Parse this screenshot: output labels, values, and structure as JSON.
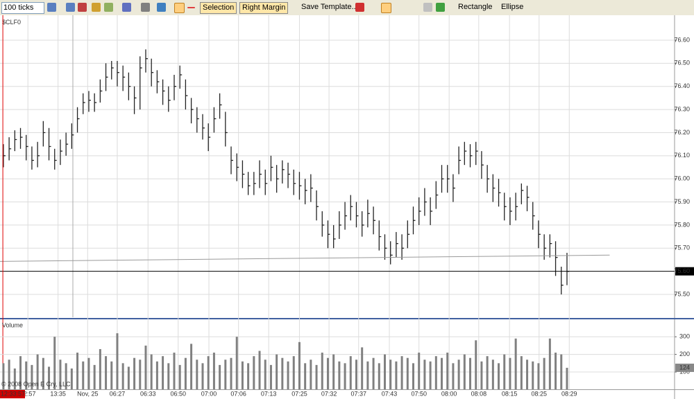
{
  "toolbar": {
    "interval": "100 ticks",
    "buttons": [
      "Selection",
      "Right Margin",
      "Save Template...",
      "Rectangle",
      "Ellipse"
    ]
  },
  "chart_data": [
    {
      "type": "ohlc",
      "title": "$CLF0",
      "color": "#222222",
      "close": [
        76.1,
        76.13,
        76.17,
        76.18,
        76.14,
        76.08,
        76.1,
        76.2,
        76.14,
        76.08,
        76.12,
        76.15,
        76.19,
        76.26,
        76.33,
        76.34,
        76.33,
        76.38,
        76.44,
        76.48,
        76.46,
        76.44,
        76.4,
        76.35,
        76.48,
        76.52,
        76.46,
        76.42,
        76.38,
        76.34,
        76.4,
        76.45,
        76.36,
        76.3,
        76.26,
        76.22,
        76.18,
        76.26,
        76.32,
        76.2,
        76.08,
        76.05,
        76.02,
        75.97,
        75.98,
        76.02,
        75.98,
        76.05,
        76.0,
        76.04,
        76.02,
        75.98,
        75.97,
        75.95,
        75.96,
        75.88,
        75.8,
        75.76,
        75.74,
        75.8,
        75.84,
        75.88,
        75.84,
        75.8,
        75.85,
        75.82,
        75.75,
        75.7,
        75.67,
        75.72,
        75.7,
        75.76,
        75.82,
        75.86,
        75.9,
        75.86,
        75.93,
        76.0,
        76.0,
        75.96,
        76.08,
        76.12,
        76.1,
        76.12,
        76.06,
        76.0,
        75.96,
        75.94,
        75.88,
        75.86,
        75.88,
        75.95,
        75.92,
        75.84,
        75.76,
        75.7,
        75.72,
        75.66,
        75.54,
        75.6
      ],
      "high": [
        76.15,
        76.18,
        76.21,
        76.22,
        76.19,
        76.14,
        76.16,
        76.25,
        76.22,
        76.13,
        76.17,
        76.2,
        76.24,
        76.31,
        76.37,
        76.38,
        76.37,
        76.43,
        76.5,
        76.51,
        76.51,
        76.49,
        76.46,
        76.4,
        76.53,
        76.56,
        76.52,
        76.47,
        76.43,
        76.4,
        76.45,
        76.49,
        76.43,
        76.35,
        76.31,
        76.28,
        76.24,
        76.31,
        76.37,
        76.29,
        76.14,
        76.11,
        76.08,
        76.03,
        76.03,
        76.08,
        76.04,
        76.1,
        76.06,
        76.08,
        76.07,
        76.04,
        76.03,
        76.0,
        76.02,
        75.95,
        75.86,
        75.82,
        75.8,
        75.86,
        75.9,
        75.93,
        75.9,
        75.86,
        75.91,
        75.88,
        75.82,
        75.76,
        75.73,
        75.77,
        75.76,
        75.82,
        75.88,
        75.92,
        75.96,
        75.92,
        75.99,
        76.06,
        76.06,
        76.02,
        76.14,
        76.16,
        76.15,
        76.16,
        76.12,
        76.06,
        76.02,
        76.0,
        75.94,
        75.92,
        75.94,
        75.98,
        75.97,
        75.9,
        75.82,
        75.76,
        75.76,
        75.73,
        75.62,
        75.68
      ],
      "low": [
        76.05,
        76.08,
        76.12,
        76.13,
        76.08,
        76.04,
        76.05,
        76.14,
        76.08,
        76.04,
        76.06,
        76.1,
        76.13,
        76.2,
        76.28,
        76.29,
        76.29,
        76.33,
        76.38,
        76.43,
        76.4,
        76.38,
        76.34,
        76.28,
        76.3,
        76.46,
        76.4,
        76.37,
        76.32,
        76.29,
        76.34,
        76.39,
        76.3,
        76.24,
        76.2,
        76.17,
        76.12,
        76.2,
        76.26,
        76.14,
        76.02,
        75.99,
        75.96,
        75.93,
        75.93,
        75.96,
        75.93,
        75.99,
        75.94,
        75.98,
        75.96,
        75.93,
        75.91,
        75.89,
        75.9,
        75.82,
        75.75,
        75.7,
        75.7,
        75.74,
        75.78,
        75.82,
        75.79,
        75.75,
        75.79,
        75.76,
        75.69,
        75.65,
        75.63,
        75.66,
        75.65,
        75.7,
        75.76,
        75.8,
        75.84,
        75.8,
        75.87,
        75.94,
        75.94,
        75.9,
        76.02,
        76.06,
        76.05,
        76.06,
        76.0,
        75.94,
        75.9,
        75.88,
        75.82,
        75.8,
        75.82,
        75.89,
        75.86,
        75.78,
        75.7,
        75.65,
        75.66,
        75.58,
        75.5,
        75.54
      ],
      "ylim": [
        75.4,
        76.7
      ],
      "yticks": [
        {
          "value": 76.6,
          "label": "76.60"
        },
        {
          "value": 76.5,
          "label": "76.50"
        },
        {
          "value": 76.4,
          "label": "76.40"
        },
        {
          "value": 76.3,
          "label": "76.30"
        },
        {
          "value": 76.2,
          "label": "76.20"
        },
        {
          "value": 76.1,
          "label": "76.10"
        },
        {
          "value": 76.0,
          "label": "76.00"
        },
        {
          "value": 75.9,
          "label": "75.90"
        },
        {
          "value": 75.8,
          "label": "75.80"
        },
        {
          "value": 75.7,
          "label": "75.70"
        },
        {
          "value": 75.5,
          "label": "75.50"
        }
      ],
      "xlim": [
        -0.6,
        117.9
      ],
      "xticks": [
        {
          "value": 4.3,
          "label": "12:57"
        },
        {
          "value": 9.6,
          "label": "13:35"
        },
        {
          "value": 14.8,
          "label": "Nov, 25"
        },
        {
          "value": 20,
          "label": "06:27"
        },
        {
          "value": 25.4,
          "label": "06:33"
        },
        {
          "value": 30.7,
          "label": "06:50"
        },
        {
          "value": 36.1,
          "label": "07:00"
        },
        {
          "value": 41.3,
          "label": "07:06"
        },
        {
          "value": 46.6,
          "label": "07:13"
        },
        {
          "value": 52,
          "label": "07:25"
        },
        {
          "value": 57.2,
          "label": "07:32"
        },
        {
          "value": 62.4,
          "label": "07:37"
        },
        {
          "value": 67.8,
          "label": "07:43"
        },
        {
          "value": 73,
          "label": "07:50"
        },
        {
          "value": 78.3,
          "label": "08:00"
        },
        {
          "value": 83.5,
          "label": "08:08"
        },
        {
          "value": 88.9,
          "label": "08:15"
        },
        {
          "value": 94.1,
          "label": "08:25"
        },
        {
          "value": 99.4,
          "label": "08:29"
        }
      ],
      "grid": true,
      "last": {
        "value": 75.6,
        "label": "75.60"
      },
      "trend_line": {
        "x": [
          -0.6,
          106.5
        ],
        "y": [
          75.643,
          75.67
        ]
      },
      "cursor": {
        "value": -0.1,
        "label": "12:33:57"
      },
      "session_break": 12.2
    },
    {
      "type": "bar",
      "title": "Volume",
      "color": "#808080",
      "copyright": "© 2008 Open E Cry, LLC",
      "values": [
        150,
        170,
        120,
        190,
        160,
        140,
        200,
        180,
        130,
        300,
        170,
        150,
        120,
        210,
        160,
        180,
        140,
        230,
        190,
        160,
        320,
        150,
        130,
        180,
        170,
        250,
        200,
        160,
        190,
        150,
        210,
        140,
        180,
        260,
        170,
        150,
        190,
        210,
        140,
        170,
        180,
        300,
        160,
        150,
        190,
        220,
        170,
        140,
        200,
        180,
        160,
        190,
        270,
        150,
        170,
        140,
        210,
        180,
        200,
        160,
        150,
        190,
        170,
        240,
        160,
        180,
        150,
        200,
        170,
        160,
        190,
        180,
        150,
        210,
        170,
        160,
        190,
        180,
        210,
        150,
        170,
        200,
        180,
        280,
        160,
        190,
        170,
        150,
        200,
        180,
        290,
        190,
        170,
        160,
        150,
        180,
        290,
        210,
        200,
        124
      ],
      "ylim": [
        0,
        395
      ],
      "yticks": [
        100,
        200,
        300
      ],
      "xlim": [
        -0.6,
        117.9
      ],
      "grid": true
    }
  ]
}
